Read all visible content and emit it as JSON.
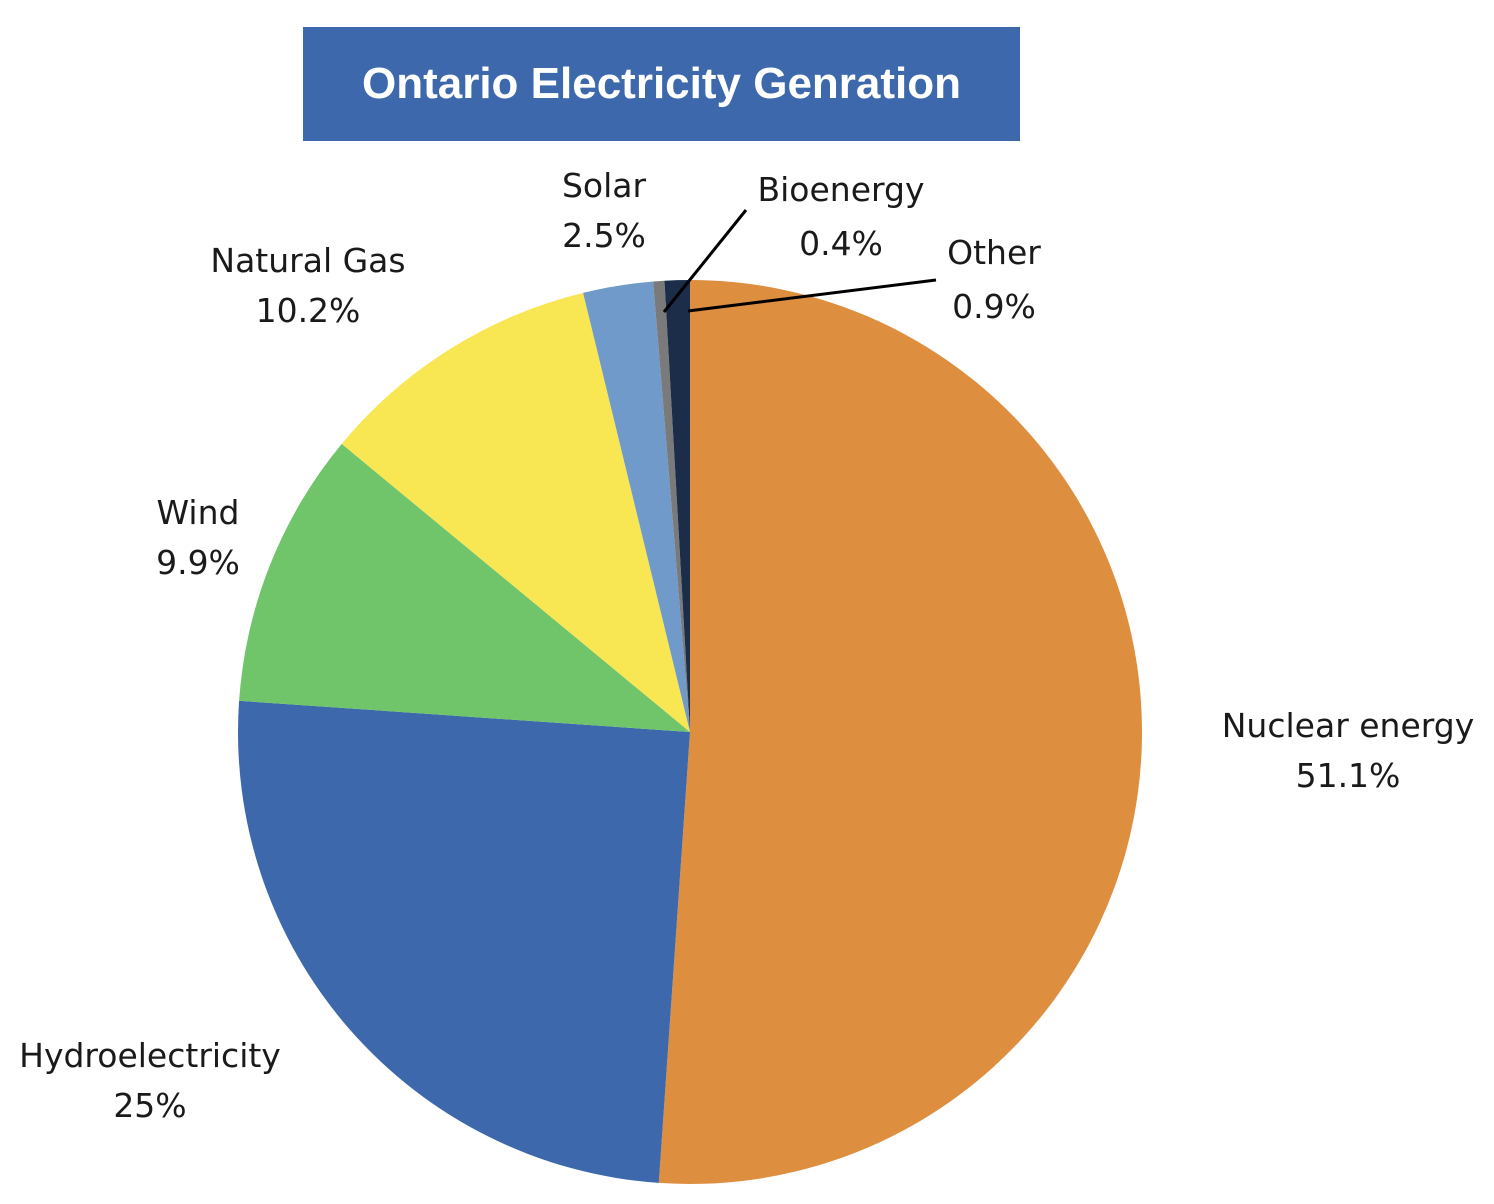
{
  "chart_data": {
    "type": "pie",
    "title": "Ontario Electricity Genration",
    "slices": [
      {
        "label": "Nuclear energy",
        "value": 51.1,
        "value_label": "51.1%",
        "color": "#dd8f3f"
      },
      {
        "label": "Hydroelectricity",
        "value": 25,
        "value_label": "25%",
        "color": "#3d69ac"
      },
      {
        "label": "Wind",
        "value": 9.9,
        "value_label": "9.9%",
        "color": "#70c56b"
      },
      {
        "label": "Natural Gas",
        "value": 10.2,
        "value_label": "10.2%",
        "color": "#f9e653"
      },
      {
        "label": "Solar",
        "value": 2.5,
        "value_label": "2.5%",
        "color": "#6f9ac9"
      },
      {
        "label": "Bioenergy",
        "value": 0.4,
        "value_label": "0.4%",
        "color": "#7a7a7a"
      },
      {
        "label": "Other",
        "value": 0.9,
        "value_label": "0.9%",
        "color": "#1c2d4a"
      }
    ],
    "colors": {
      "title_background": "#3d69ac",
      "title_text": "#ffffff"
    }
  }
}
